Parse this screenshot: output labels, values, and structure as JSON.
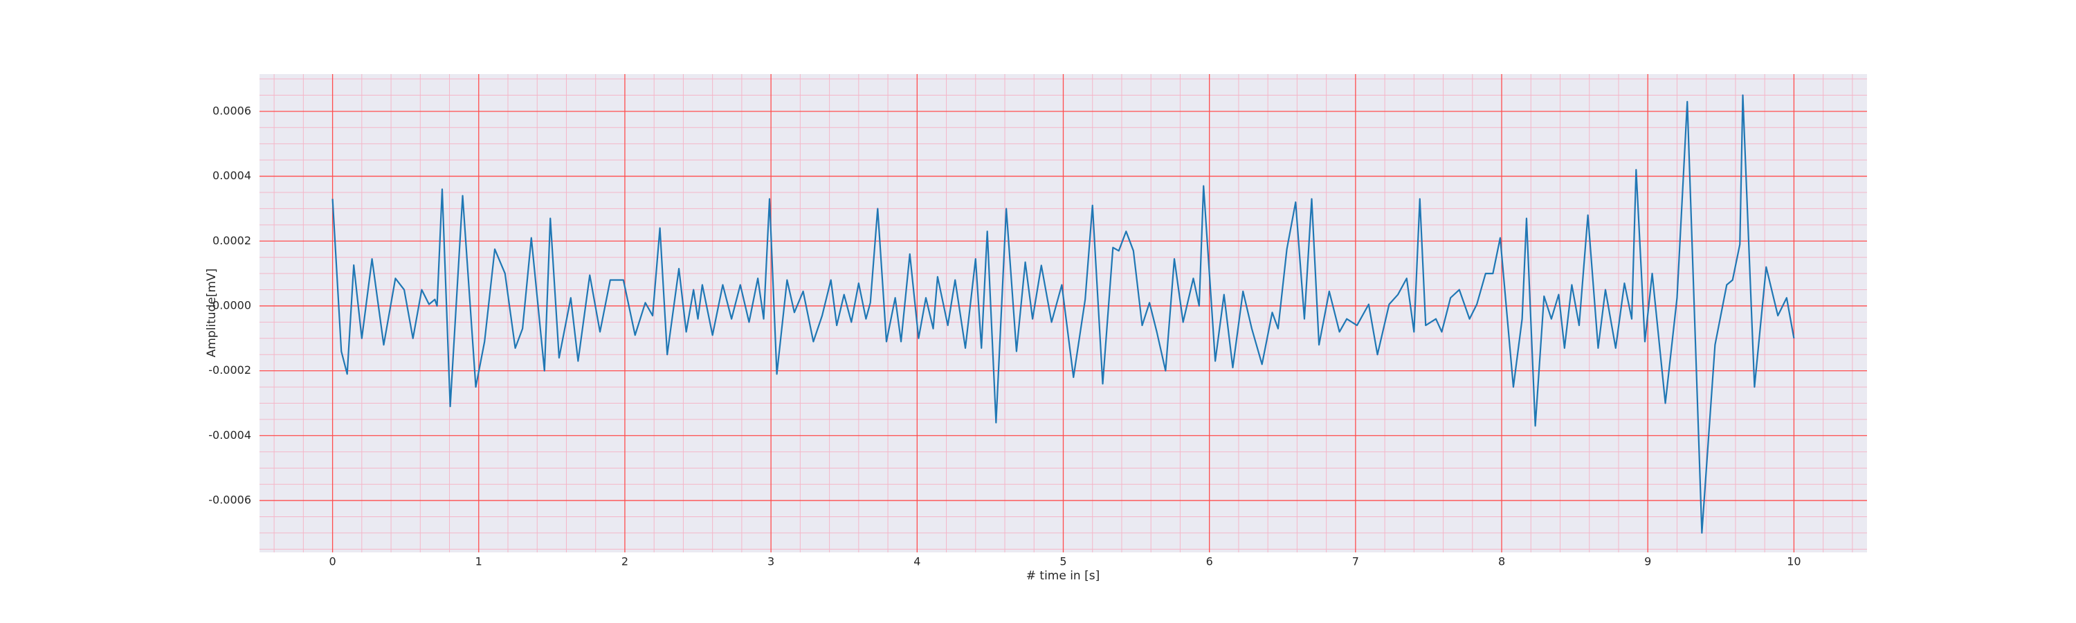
{
  "chart_data": {
    "type": "line",
    "xlabel": "# time in [s]",
    "ylabel": "Amplitude[mV]",
    "xlim": [
      -0.5,
      10.5
    ],
    "ylim": [
      -0.00076,
      0.000715
    ],
    "xticks": [
      0,
      1,
      2,
      3,
      4,
      5,
      6,
      7,
      8,
      9,
      10
    ],
    "yticks": [
      {
        "value": -0.0006,
        "label": "-0.0006"
      },
      {
        "value": -0.0004,
        "label": "-0.0004"
      },
      {
        "value": -0.0002,
        "label": "-0.0002"
      },
      {
        "value": 0,
        "label": "0.0000"
      },
      {
        "value": 0.0002,
        "label": "0.0002"
      },
      {
        "value": 0.0004,
        "label": "0.0004"
      },
      {
        "value": 0.0006,
        "label": "0.0006"
      }
    ],
    "grid": true,
    "grid_color": "#ff4d4d",
    "minor_grid_color": "#f4b6c8",
    "background": "#eaeaf2",
    "series": [
      {
        "color": "#1f77b4",
        "x": [
          0,
          0.06,
          0.1,
          0.145,
          0.2,
          0.27,
          0.35,
          0.43,
          0.49,
          0.55,
          0.61,
          0.66,
          0.7,
          0.715,
          0.75,
          0.805,
          0.89,
          0.98,
          1.04,
          1.11,
          1.18,
          1.25,
          1.3,
          1.36,
          1.45,
          1.49,
          1.55,
          1.63,
          1.68,
          1.76,
          1.83,
          1.9,
          1.99,
          2.07,
          2.14,
          2.19,
          2.24,
          2.29,
          2.37,
          2.42,
          2.47,
          2.5,
          2.53,
          2.6,
          2.67,
          2.73,
          2.79,
          2.85,
          2.91,
          2.95,
          2.99,
          3.04,
          3.11,
          3.16,
          3.22,
          3.29,
          3.35,
          3.41,
          3.45,
          3.5,
          3.55,
          3.6,
          3.65,
          3.68,
          3.73,
          3.79,
          3.85,
          3.89,
          3.95,
          4.01,
          4.06,
          4.11,
          4.14,
          4.21,
          4.26,
          4.33,
          4.4,
          4.44,
          4.48,
          4.54,
          4.61,
          4.68,
          4.74,
          4.79,
          4.85,
          4.92,
          4.99,
          5.07,
          5.15,
          5.2,
          5.27,
          5.34,
          5.38,
          5.43,
          5.48,
          5.54,
          5.59,
          5.64,
          5.7,
          5.76,
          5.82,
          5.89,
          5.93,
          5.96,
          6.04,
          6.1,
          6.16,
          6.23,
          6.29,
          6.36,
          6.43,
          6.47,
          6.53,
          6.59,
          6.65,
          6.7,
          6.75,
          6.82,
          6.89,
          6.94,
          7.01,
          7.09,
          7.15,
          7.23,
          7.29,
          7.35,
          7.4,
          7.44,
          7.48,
          7.55,
          7.59,
          7.65,
          7.71,
          7.78,
          7.83,
          7.89,
          7.94,
          7.99,
          8.08,
          8.14,
          8.17,
          8.23,
          8.29,
          8.34,
          8.39,
          8.43,
          8.48,
          8.53,
          8.59,
          8.66,
          8.71,
          8.78,
          8.84,
          8.89,
          8.92,
          8.98,
          9.03,
          9.12,
          9.2,
          9.27,
          9.37,
          9.46,
          9.54,
          9.58,
          9.63,
          9.65,
          9.73,
          9.81,
          9.89,
          9.95,
          10
        ],
        "values": [
          0.00033,
          -0.00014,
          -0.00021,
          0.000126,
          -0.0001,
          0.000145,
          -0.00012,
          8.5e-05,
          5e-05,
          -0.0001,
          5e-05,
          5e-06,
          2e-05,
          0,
          0.00036,
          -0.00031,
          0.00034,
          -0.00025,
          -0.00011,
          0.000175,
          0.0001,
          -0.00013,
          -7e-05,
          0.00021,
          -0.0002,
          0.00027,
          -0.00016,
          2.5e-05,
          -0.00017,
          9.5e-05,
          -8e-05,
          8e-05,
          8e-05,
          -9e-05,
          1e-05,
          -3e-05,
          0.00024,
          -0.00015,
          0.000115,
          -8e-05,
          5e-05,
          -4e-05,
          6.5e-05,
          -9e-05,
          6.5e-05,
          -4e-05,
          6.5e-05,
          -5e-05,
          8.5e-05,
          -4e-05,
          0.00033,
          -0.00021,
          8e-05,
          -2e-05,
          4.5e-05,
          -0.00011,
          -3e-05,
          8e-05,
          -6e-05,
          3.5e-05,
          -5e-05,
          7e-05,
          -4e-05,
          1e-05,
          0.0003,
          -0.00011,
          2.5e-05,
          -0.00011,
          0.00016,
          -0.0001,
          2.5e-05,
          -7e-05,
          9e-05,
          -6e-05,
          8e-05,
          -0.00013,
          0.000145,
          -0.00013,
          0.00023,
          -0.00036,
          0.0003,
          -0.00014,
          0.000135,
          -4e-05,
          0.000125,
          -5e-05,
          6.5e-05,
          -0.00022,
          2e-05,
          0.00031,
          -0.00024,
          0.00018,
          0.00017,
          0.00023,
          0.00017,
          -6e-05,
          1e-05,
          -8e-05,
          -0.0002,
          0.000145,
          -5e-05,
          8.5e-05,
          0,
          0.00037,
          -0.00017,
          3.5e-05,
          -0.00019,
          4.5e-05,
          -7e-05,
          -0.00018,
          -2e-05,
          -7e-05,
          0.000175,
          0.00032,
          -4e-05,
          0.00033,
          -0.00012,
          4.5e-05,
          -8e-05,
          -4e-05,
          -6e-05,
          5e-06,
          -0.00015,
          5e-06,
          3.5e-05,
          8.5e-05,
          -8e-05,
          0.00033,
          -6e-05,
          -4e-05,
          -8e-05,
          2.5e-05,
          5e-05,
          -4e-05,
          5e-06,
          0.0001,
          0.0001,
          0.00021,
          -0.00025,
          -4e-05,
          0.00027,
          -0.00037,
          3e-05,
          -4e-05,
          3.5e-05,
          -0.00013,
          6.5e-05,
          -6e-05,
          0.00028,
          -0.00013,
          5e-05,
          -0.00013,
          7e-05,
          -4e-05,
          0.00042,
          -0.00011,
          0.0001,
          -0.0003,
          2.5e-05,
          0.00063,
          -0.0007,
          -0.00012,
          6.5e-05,
          8e-05,
          0.00019,
          0.00065,
          -0.00025,
          0.00012,
          -3e-05,
          2.5e-05,
          -0.0001
        ]
      }
    ]
  }
}
